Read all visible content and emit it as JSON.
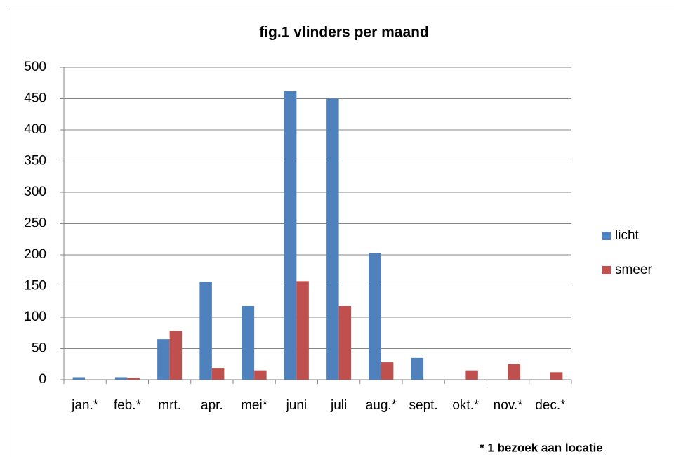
{
  "chart_data": {
    "type": "bar",
    "title": "fig.1   vlinders per maand",
    "categories": [
      "jan.*",
      "feb.*",
      "mrt.",
      "apr.",
      "mei*",
      "juni",
      "juli",
      "aug.*",
      "sept.",
      "okt.*",
      "nov.*",
      "dec.*"
    ],
    "series": [
      {
        "name": "licht",
        "color": "#4f81bd",
        "values": [
          4,
          4,
          65,
          157,
          118,
          462,
          450,
          203,
          35,
          0,
          0,
          0
        ]
      },
      {
        "name": "smeer",
        "color": "#c0504d",
        "values": [
          0,
          3,
          78,
          19,
          15,
          158,
          118,
          28,
          0,
          15,
          25,
          12
        ]
      }
    ],
    "ylim": [
      0,
      500
    ],
    "yticks": [
      0,
      50,
      100,
      150,
      200,
      250,
      300,
      350,
      400,
      450,
      500
    ],
    "grid": true,
    "legend": "right",
    "annotation": "* 1 bezoek  aan locatie"
  }
}
